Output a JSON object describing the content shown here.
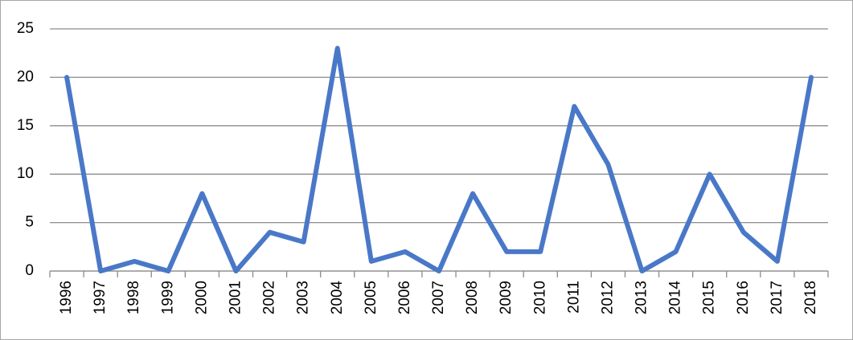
{
  "chart_data": {
    "type": "line",
    "categories": [
      "1996",
      "1997",
      "1998",
      "1999",
      "2000",
      "2001",
      "2002",
      "2003",
      "2004",
      "2005",
      "2006",
      "2007",
      "2008",
      "2009",
      "2010",
      "2011",
      "2012",
      "2013",
      "2014",
      "2015",
      "2016",
      "2017",
      "2018"
    ],
    "values": [
      20,
      0,
      1,
      0,
      8,
      0,
      4,
      3,
      23,
      1,
      2,
      0,
      8,
      2,
      2,
      17,
      11,
      0,
      2,
      10,
      4,
      1,
      20
    ],
    "color": "#4a78c8",
    "ylim": [
      0,
      25
    ],
    "yticks": [
      0,
      5,
      10,
      15,
      20,
      25
    ],
    "grid": true
  }
}
